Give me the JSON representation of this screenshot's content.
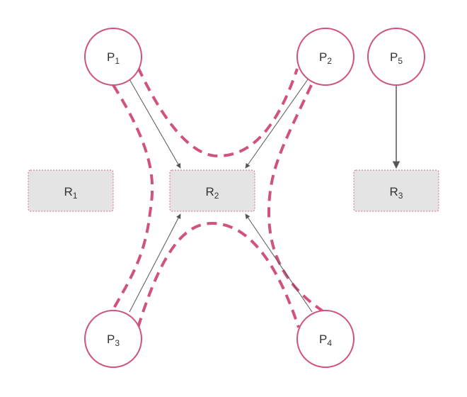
{
  "diagram": {
    "processes": [
      {
        "id": "P1",
        "letter": "P",
        "sub": "1"
      },
      {
        "id": "P2",
        "letter": "P",
        "sub": "2"
      },
      {
        "id": "P3",
        "letter": "P",
        "sub": "3"
      },
      {
        "id": "P4",
        "letter": "P",
        "sub": "4"
      },
      {
        "id": "P5",
        "letter": "P",
        "sub": "5"
      }
    ],
    "resources": [
      {
        "id": "R1",
        "letter": "R",
        "sub": "1"
      },
      {
        "id": "R2",
        "letter": "R",
        "sub": "2"
      },
      {
        "id": "R3",
        "letter": "R",
        "sub": "3"
      }
    ],
    "edges": [
      {
        "from": "P1",
        "to": "R2"
      },
      {
        "from": "P2",
        "to": "R2"
      },
      {
        "from": "P3",
        "to": "R2"
      },
      {
        "from": "P4",
        "to": "R2"
      },
      {
        "from": "P5",
        "to": "R3"
      }
    ],
    "colors": {
      "process_stroke": "#d0527e",
      "resource_fill": "#e4e4e4",
      "resource_border": "#d56a90",
      "arrow": "#555555",
      "highlight": "#d0527e"
    }
  }
}
